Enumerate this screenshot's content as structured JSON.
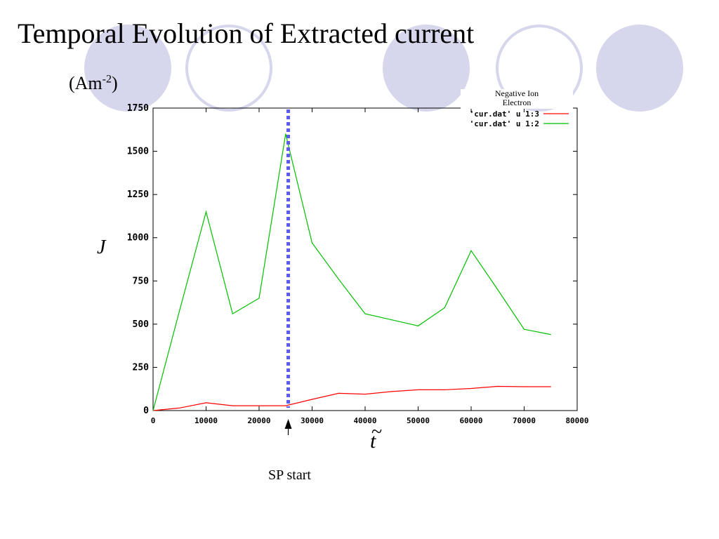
{
  "slide": {
    "title": "Temporal Evolution of Extracted current",
    "unit_base": "(Am",
    "unit_exp": "-2",
    "unit_close": ")",
    "y_symbol": "J",
    "x_symbol": "t",
    "x_tilde": "~",
    "annotation": "SP start",
    "legend_overlay": [
      "Negative Ion",
      "Electron"
    ]
  },
  "colors": {
    "decor": "#d6d6ec",
    "negative_ion": "#ff0000",
    "electron": "#00c000",
    "marker": "#5b5bf0"
  },
  "chart_data": {
    "type": "line",
    "xlim": [
      0,
      80000
    ],
    "ylim": [
      0,
      1750
    ],
    "xticks": [
      "0",
      "10000",
      "20000",
      "30000",
      "40000",
      "50000",
      "60000",
      "70000",
      "80000"
    ],
    "yticks": [
      "0",
      "250",
      "500",
      "750",
      "1000",
      "1250",
      "1500",
      "1750"
    ],
    "grid": false,
    "legend_position": "top-right",
    "series": [
      {
        "name": "'cur.dat' u 1:3",
        "color": "#ff0000",
        "x": [
          0,
          5000,
          10000,
          15000,
          20000,
          25000,
          30000,
          35000,
          40000,
          45000,
          50000,
          55000,
          60000,
          65000,
          70000,
          75000
        ],
        "y": [
          0,
          15,
          45,
          28,
          28,
          28,
          65,
          100,
          95,
          110,
          120,
          120,
          128,
          140,
          138,
          138
        ]
      },
      {
        "name": "'cur.dat' u 1:2",
        "color": "#00c000",
        "x": [
          0,
          5000,
          10000,
          15000,
          20000,
          25000,
          30000,
          35000,
          40000,
          45000,
          50000,
          55000,
          60000,
          65000,
          70000,
          75000
        ],
        "y": [
          0,
          580,
          1150,
          560,
          650,
          1600,
          970,
          760,
          560,
          525,
          490,
          595,
          925,
          700,
          470,
          440
        ]
      }
    ],
    "marker_x": 25500
  }
}
